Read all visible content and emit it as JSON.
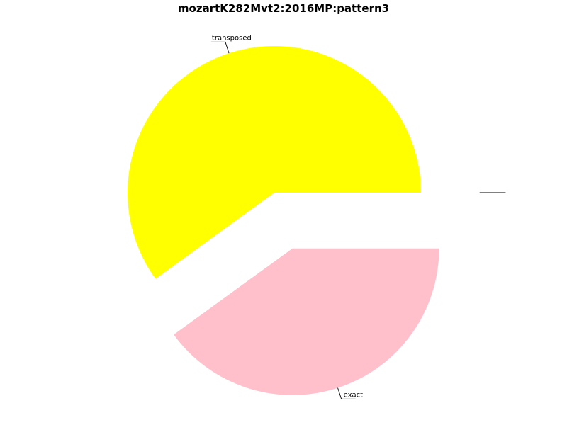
{
  "chart_data": {
    "type": "pie",
    "title": "mozartK282Mvt2:2016MP:pattern3",
    "slices": [
      {
        "label": "transposed",
        "value": 60.0,
        "color": "#ffff00",
        "exploded": false
      },
      {
        "label": "exact",
        "value": 40.0,
        "color": "#ffc0cb",
        "exploded": true
      },
      {
        "label": "",
        "value": 0.0,
        "color": "#ffffff",
        "exploded": true
      },
      {
        "label": "",
        "value": 0.0,
        "color": "#ffffff",
        "exploded": true
      }
    ]
  }
}
